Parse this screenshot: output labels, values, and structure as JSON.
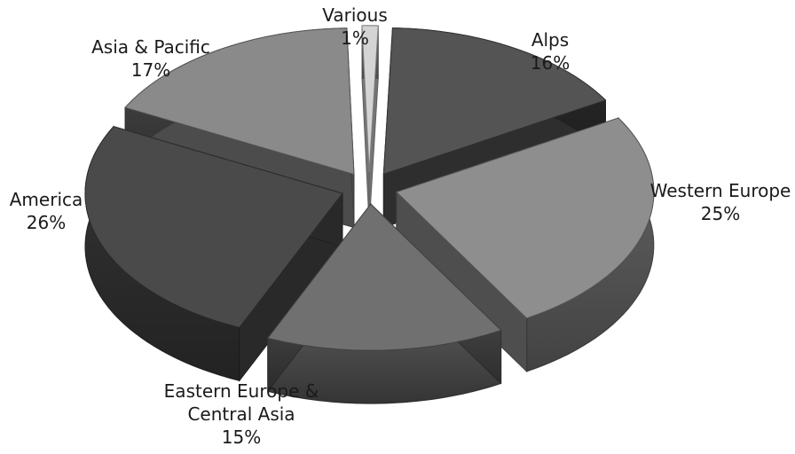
{
  "chart_data": {
    "type": "pie",
    "style": "3d-exploded",
    "title": "",
    "slices": [
      {
        "name": "Alps",
        "label_lines": [
          "Alps"
        ],
        "percent_text": "16%",
        "value": 16,
        "color": "#545454"
      },
      {
        "name": "Western Europe",
        "label_lines": [
          "Western Europe"
        ],
        "percent_text": "25%",
        "value": 25,
        "color": "#8e8e8e"
      },
      {
        "name": "Eastern Europe & Central Asia",
        "label_lines": [
          "Eastern Europe &",
          "Central Asia"
        ],
        "percent_text": "15%",
        "value": 15,
        "color": "#707070"
      },
      {
        "name": "America",
        "label_lines": [
          "America"
        ],
        "percent_text": "26%",
        "value": 26,
        "color": "#4a4a4a"
      },
      {
        "name": "Asia & Pacific",
        "label_lines": [
          "Asia & Pacific"
        ],
        "percent_text": "17%",
        "value": 17,
        "color": "#8a8a8a"
      },
      {
        "name": "Various",
        "label_lines": [
          "Various"
        ],
        "percent_text": "1%",
        "value": 1,
        "color": "#d4d4d4"
      }
    ]
  }
}
